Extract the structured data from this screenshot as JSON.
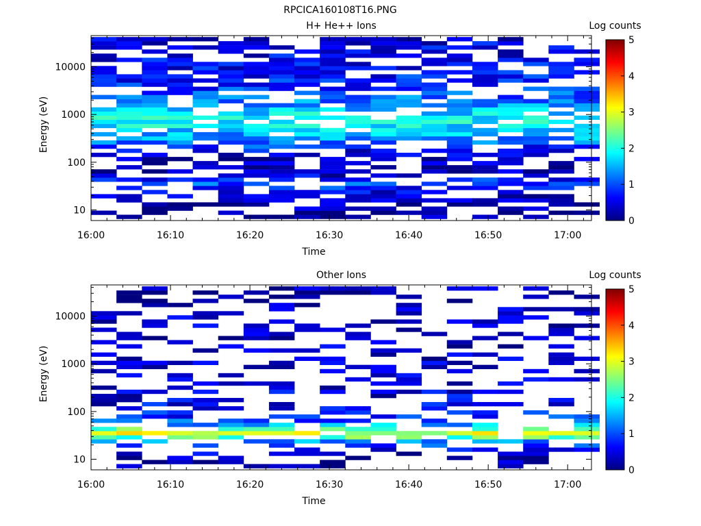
{
  "figure_title": "RPCICA160108T16.PNG",
  "colormap": [
    "#00007f",
    "#0000ff",
    "#007fff",
    "#00ffff",
    "#7fff7f",
    "#ffff00",
    "#ff7f00",
    "#ff0000",
    "#7f0000"
  ],
  "chart_data": [
    {
      "type": "heatmap",
      "title": "H+ He++ Ions",
      "xlabel": "Time",
      "ylabel": "Energy (eV)",
      "x_ticks": [
        "16:00",
        "16:10",
        "16:20",
        "16:30",
        "16:40",
        "16:50",
        "17:00"
      ],
      "x_range_minutes": [
        0,
        63
      ],
      "y_scale": "log",
      "y_range": [
        6,
        45000
      ],
      "y_ticks": [
        {
          "value": 10,
          "label": "10"
        },
        {
          "value": 100,
          "label": "100"
        },
        {
          "value": 1000,
          "label": "1000"
        },
        {
          "value": 10000,
          "label": "10000"
        }
      ],
      "colorbar": {
        "label": "Log counts",
        "range": [
          0,
          5
        ],
        "ticks": [
          "0",
          "1",
          "2",
          "3",
          "4",
          "5"
        ]
      },
      "time_bins_minutes": [
        1.6,
        4.8,
        8.0,
        11.2,
        14.4,
        17.6,
        20.8,
        24.0,
        27.2,
        30.4,
        33.6,
        36.8,
        40.0,
        43.2,
        46.4,
        49.6,
        52.8,
        56.0,
        59.2,
        62.4
      ],
      "band_profile": [
        {
          "energy_ev": 9,
          "level": 0.1
        },
        {
          "energy_ev": 13,
          "level": 0.2
        },
        {
          "energy_ev": 20,
          "level": 0.3
        },
        {
          "energy_ev": 35,
          "level": 1.0
        },
        {
          "energy_ev": 60,
          "level": 0.25
        },
        {
          "energy_ev": 150,
          "level": 0.4
        },
        {
          "energy_ev": 300,
          "level": 1.3
        },
        {
          "energy_ev": 700,
          "level": 1.9
        },
        {
          "energy_ev": 1300,
          "level": 1.6
        },
        {
          "energy_ev": 3000,
          "level": 0.9
        },
        {
          "energy_ev": 10000,
          "level": 0.6
        },
        {
          "energy_ev": 40000,
          "level": 0.5
        }
      ],
      "fill_probability": 0.52
    },
    {
      "type": "heatmap",
      "title": "Other Ions",
      "xlabel": "Time",
      "ylabel": "Energy (eV)",
      "x_ticks": [
        "16:00",
        "16:10",
        "16:20",
        "16:30",
        "16:40",
        "16:50",
        "17:00"
      ],
      "x_range_minutes": [
        0,
        63
      ],
      "y_scale": "log",
      "y_range": [
        6,
        45000
      ],
      "y_ticks": [
        {
          "value": 10,
          "label": "10"
        },
        {
          "value": 100,
          "label": "100"
        },
        {
          "value": 1000,
          "label": "1000"
        },
        {
          "value": 10000,
          "label": "10000"
        }
      ],
      "colorbar": {
        "label": "Log counts",
        "range": [
          0,
          5
        ],
        "ticks": [
          "0",
          "1",
          "2",
          "3",
          "4",
          "5"
        ]
      },
      "time_bins_minutes": [
        1.6,
        4.8,
        8.0,
        11.2,
        14.4,
        17.6,
        20.8,
        24.0,
        27.2,
        30.4,
        33.6,
        36.8,
        40.0,
        43.2,
        46.4,
        49.6,
        52.8,
        56.0,
        59.2,
        62.4
      ],
      "band_profile": [
        {
          "energy_ev": 9,
          "level": 0.2
        },
        {
          "energy_ev": 15,
          "level": 0.4
        },
        {
          "energy_ev": 22,
          "level": 1.0
        },
        {
          "energy_ev": 30,
          "level": 2.4
        },
        {
          "energy_ev": 37,
          "level": 3.1
        },
        {
          "energy_ev": 45,
          "level": 2.0
        },
        {
          "energy_ev": 60,
          "level": 1.0
        },
        {
          "energy_ev": 150,
          "level": 0.5
        },
        {
          "energy_ev": 1000,
          "level": 0.3
        },
        {
          "energy_ev": 10000,
          "level": 0.3
        },
        {
          "energy_ev": 40000,
          "level": 0.2
        }
      ],
      "fill_probability": 0.28
    }
  ]
}
